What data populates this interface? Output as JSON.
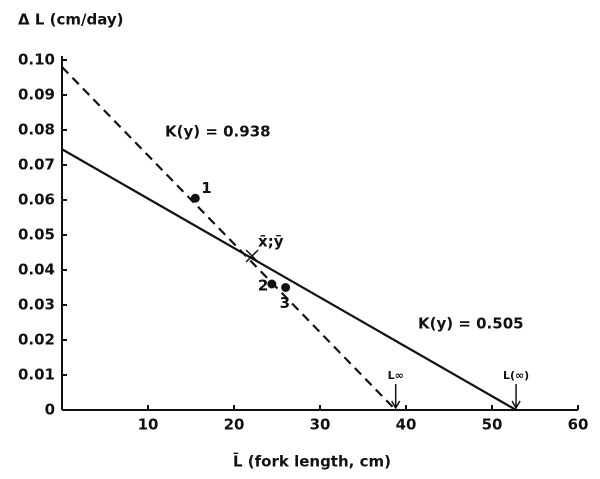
{
  "chart_data": {
    "type": "line",
    "y_label": "Δ L (cm/day)",
    "x_label": "L̄ (fork length, cm)",
    "xlim": [
      0,
      60
    ],
    "ylim": [
      0,
      0.1
    ],
    "xticks": [
      10,
      20,
      30,
      40,
      50,
      60
    ],
    "yticks": [
      0,
      0.01,
      0.02,
      0.03,
      0.04,
      0.05,
      0.06,
      0.07,
      0.08,
      0.09,
      {
        "value": 0.1,
        "label": "0.10"
      }
    ],
    "grid": false,
    "series": [
      {
        "name": "K(y) = 0.938",
        "color": "#111111",
        "style": "dashed",
        "x": [
          0,
          38.8
        ],
        "values": [
          0.098,
          0
        ]
      },
      {
        "name": "K(y) = 0.505",
        "color": "#111111",
        "style": "solid",
        "x": [
          0,
          52.8
        ],
        "values": [
          0.0745,
          0
        ]
      }
    ],
    "points": {
      "labels": [
        "1",
        "2",
        "3"
      ],
      "x": [
        15.5,
        24.4,
        26.0
      ],
      "values": [
        0.0605,
        0.036,
        0.035
      ]
    },
    "mean": {
      "label": "x̄;ȳ",
      "x": 22.1,
      "value": 0.044
    },
    "arrows": [
      {
        "label": "L∞",
        "x": 38.8
      },
      {
        "label": "L(∞)",
        "x": 52.8
      }
    ]
  }
}
